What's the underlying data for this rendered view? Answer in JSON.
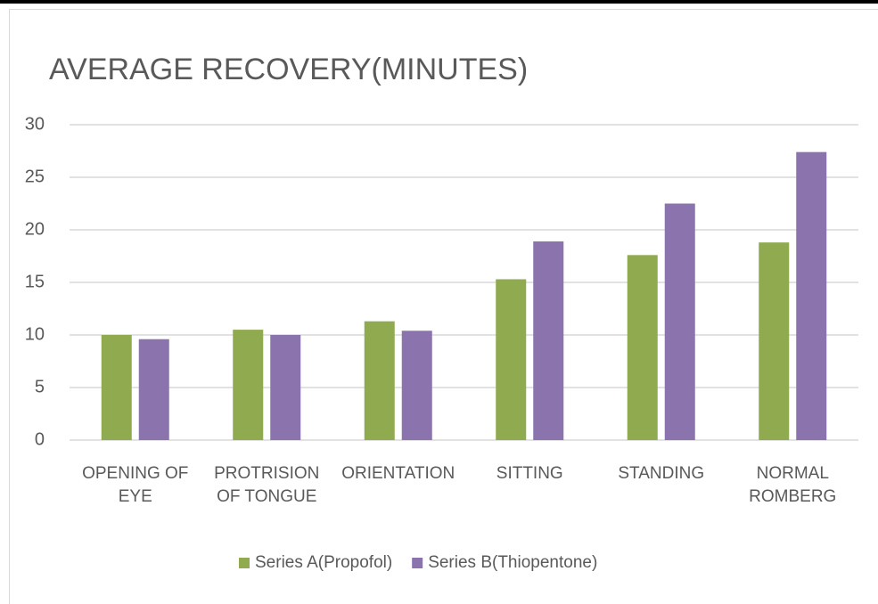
{
  "chart_data": {
    "type": "bar",
    "title": "AVERAGE RECOVERY(MINUTES)",
    "categories": [
      "OPENING OF EYE",
      "PROTRISION OF TONGUE",
      "ORIENTATION",
      "SITTING",
      "STANDING",
      "NORMAL ROMBERG"
    ],
    "series": [
      {
        "name": "Series A(Propofol)",
        "color": "#8faa4f",
        "values": [
          10.0,
          10.5,
          11.3,
          15.3,
          17.6,
          18.8
        ]
      },
      {
        "name": "Series B(Thiopentone)",
        "color": "#8b73ad",
        "values": [
          9.6,
          10.0,
          10.4,
          18.9,
          22.5,
          27.4
        ]
      }
    ],
    "ylim": [
      0,
      30
    ],
    "yticks": [
      0,
      5,
      10,
      15,
      20,
      25,
      30
    ],
    "grid": true,
    "legend": "bottom"
  }
}
